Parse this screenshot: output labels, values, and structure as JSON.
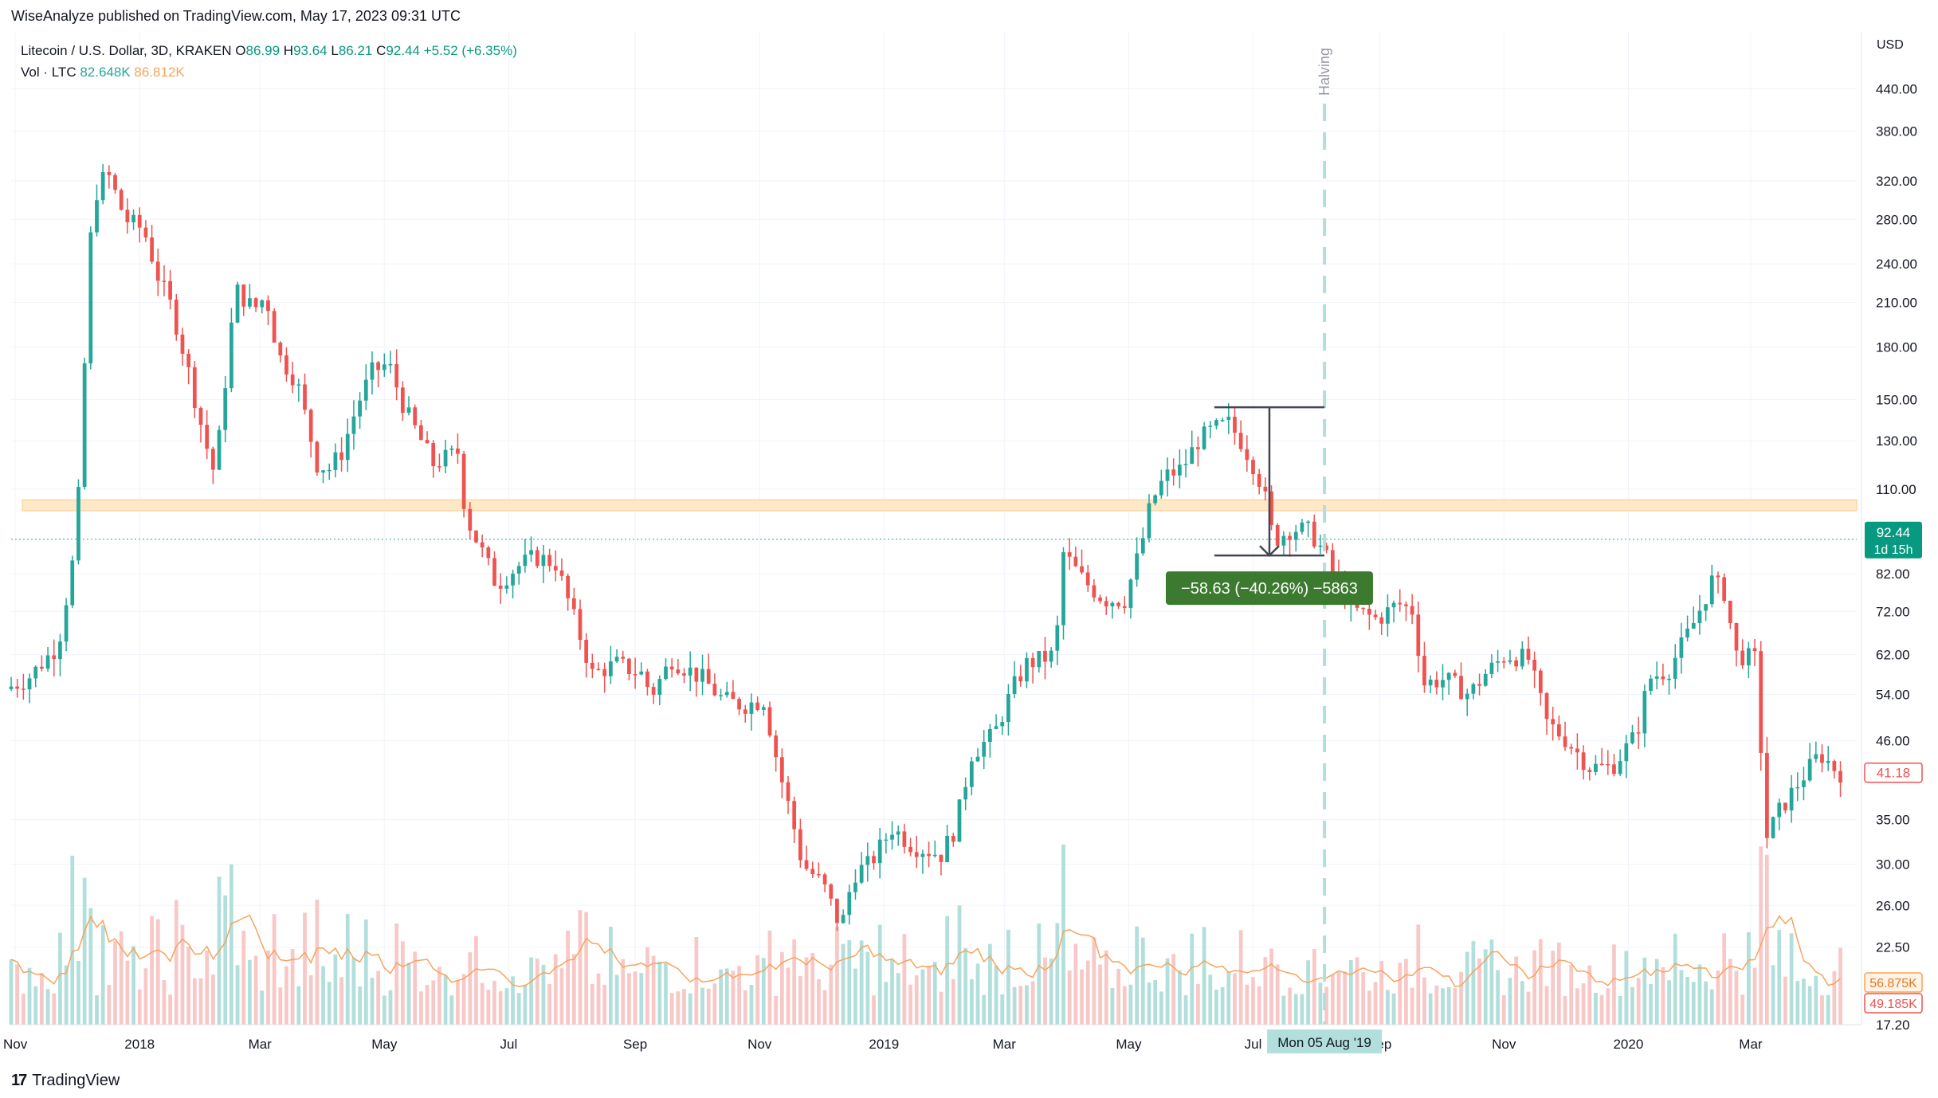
{
  "header": {
    "published": "WiseAnalyze published on TradingView.com, May 17, 2023 09:31 UTC",
    "symbol": "Litecoin / U.S. Dollar, 3D, KRAKEN",
    "ohlc": {
      "o_label": "O",
      "o": "86.99",
      "h_label": "H",
      "h": "93.64",
      "l_label": "L",
      "l": "86.21",
      "c_label": "C",
      "c": "92.44",
      "change": "+5.52 (+6.35%)"
    },
    "volume": {
      "label": "Vol · LTC",
      "value": "82.648K",
      "ma": "86.812K"
    }
  },
  "footer": {
    "brand": "TradingView"
  },
  "chart_data": {
    "type": "candlestick",
    "currency": "USD",
    "y_scale": "log",
    "ylim": [
      17.2,
      480
    ],
    "price_ticks": [
      "440.00",
      "380.00",
      "320.00",
      "280.00",
      "240.00",
      "210.00",
      "180.00",
      "150.00",
      "130.00",
      "110.00",
      "82.00",
      "72.00",
      "62.00",
      "54.00",
      "46.00",
      "35.00",
      "30.00",
      "26.00",
      "22.50",
      "17.20"
    ],
    "x_ticks": [
      "Nov",
      "2018",
      "Mar",
      "May",
      "Jul",
      "Sep",
      "Nov",
      "2019",
      "Mar",
      "May",
      "Jul",
      "Sep",
      "Nov",
      "2020",
      "Mar"
    ],
    "x_tick_dates": [
      "2017-11-01",
      "2018-01-01",
      "2018-03-01",
      "2018-05-01",
      "2018-07-01",
      "2018-09-01",
      "2018-11-01",
      "2019-01-01",
      "2019-03-01",
      "2019-05-01",
      "2019-07-01",
      "2019-09-01",
      "2019-11-01",
      "2020-01-01",
      "2020-03-01"
    ],
    "x_range": [
      "2017-10-30",
      "2020-04-22"
    ],
    "price_anchors": [
      [
        "2017-10-30",
        55
      ],
      [
        "2017-11-10",
        57
      ],
      [
        "2017-11-25",
        64
      ],
      [
        "2017-12-04",
        92
      ],
      [
        "2017-12-10",
        230
      ],
      [
        "2017-12-12",
        300
      ],
      [
        "2017-12-19",
        330
      ],
      [
        "2017-12-28",
        280
      ],
      [
        "2018-01-06",
        270
      ],
      [
        "2018-01-13",
        230
      ],
      [
        "2018-01-20",
        205
      ],
      [
        "2018-01-27",
        170
      ],
      [
        "2018-02-05",
        130
      ],
      [
        "2018-02-10",
        115
      ],
      [
        "2018-02-14",
        150
      ],
      [
        "2018-02-20",
        220
      ],
      [
        "2018-03-01",
        205
      ],
      [
        "2018-03-07",
        215
      ],
      [
        "2018-03-13",
        175
      ],
      [
        "2018-03-22",
        160
      ],
      [
        "2018-04-01",
        120
      ],
      [
        "2018-04-07",
        118
      ],
      [
        "2018-04-13",
        125
      ],
      [
        "2018-04-21",
        148
      ],
      [
        "2018-04-28",
        165
      ],
      [
        "2018-05-06",
        170
      ],
      [
        "2018-05-14",
        145
      ],
      [
        "2018-05-28",
        120
      ],
      [
        "2018-06-09",
        125
      ],
      [
        "2018-06-13",
        100
      ],
      [
        "2018-06-22",
        87
      ],
      [
        "2018-06-28",
        79
      ],
      [
        "2018-07-08",
        84
      ],
      [
        "2018-07-17",
        87
      ],
      [
        "2018-07-27",
        85
      ],
      [
        "2018-08-08",
        66
      ],
      [
        "2018-08-14",
        58
      ],
      [
        "2018-08-26",
        60
      ],
      [
        "2018-09-07",
        58
      ],
      [
        "2018-09-12",
        54
      ],
      [
        "2018-09-22",
        61
      ],
      [
        "2018-10-07",
        57
      ],
      [
        "2018-10-17",
        53
      ],
      [
        "2018-10-27",
        52
      ],
      [
        "2018-11-06",
        53
      ],
      [
        "2018-11-14",
        41
      ],
      [
        "2018-11-20",
        35
      ],
      [
        "2018-11-25",
        30
      ],
      [
        "2018-12-05",
        28
      ],
      [
        "2018-12-14",
        24
      ],
      [
        "2018-12-20",
        29
      ],
      [
        "2018-12-28",
        30
      ],
      [
        "2019-01-08",
        34
      ],
      [
        "2019-01-18",
        32
      ],
      [
        "2019-02-01",
        31
      ],
      [
        "2019-02-08",
        34
      ],
      [
        "2019-02-16",
        44
      ],
      [
        "2019-02-27",
        47
      ],
      [
        "2019-03-08",
        55
      ],
      [
        "2019-03-15",
        60
      ],
      [
        "2019-03-29",
        62
      ],
      [
        "2019-04-02",
        88
      ],
      [
        "2019-04-12",
        80
      ],
      [
        "2019-04-22",
        75
      ],
      [
        "2019-05-02",
        75
      ],
      [
        "2019-05-10",
        90
      ],
      [
        "2019-05-15",
        105
      ],
      [
        "2019-05-22",
        115
      ],
      [
        "2019-05-30",
        118
      ],
      [
        "2019-06-07",
        130
      ],
      [
        "2019-06-14",
        135
      ],
      [
        "2019-06-22",
        138
      ],
      [
        "2019-06-28",
        130
      ],
      [
        "2019-07-04",
        120
      ],
      [
        "2019-07-09",
        110
      ],
      [
        "2019-07-14",
        92
      ],
      [
        "2019-07-23",
        96
      ],
      [
        "2019-08-01",
        95
      ],
      [
        "2019-08-08",
        88
      ],
      [
        "2019-08-15",
        78
      ],
      [
        "2019-08-24",
        72
      ],
      [
        "2019-09-03",
        70
      ],
      [
        "2019-09-13",
        74
      ],
      [
        "2019-09-21",
        72
      ],
      [
        "2019-09-25",
        56
      ],
      [
        "2019-10-06",
        57
      ],
      [
        "2019-10-18",
        54
      ],
      [
        "2019-10-26",
        58
      ],
      [
        "2019-11-05",
        62
      ],
      [
        "2019-11-16",
        61
      ],
      [
        "2019-11-25",
        49
      ],
      [
        "2019-12-05",
        46
      ],
      [
        "2019-12-16",
        42
      ],
      [
        "2019-12-27",
        42
      ],
      [
        "2020-01-08",
        47
      ],
      [
        "2020-01-14",
        57
      ],
      [
        "2020-01-24",
        59
      ],
      [
        "2020-02-06",
        70
      ],
      [
        "2020-02-14",
        80
      ],
      [
        "2020-02-20",
        77
      ],
      [
        "2020-02-26",
        62
      ],
      [
        "2020-03-06",
        61
      ],
      [
        "2020-03-12",
        33
      ],
      [
        "2020-03-18",
        36
      ],
      [
        "2020-03-28",
        40
      ],
      [
        "2020-04-07",
        44
      ],
      [
        "2020-04-16",
        41.2
      ]
    ],
    "annotations": {
      "resistance_zone": [
        102,
        106
      ],
      "dotted_last_price": 92.44,
      "halving": {
        "date": "2019-08-05",
        "label": "Halving"
      },
      "measure": {
        "from_date": "2019-06-12",
        "to_date": "2019-08-05",
        "top": 146,
        "bottom": 87.4,
        "label": "−58.63 (−40.26%) −5863"
      },
      "crosshair_date_label": "Mon 05 Aug '19"
    },
    "price_labels": {
      "last": "92.44",
      "countdown": "1d 15h",
      "prev": "41.18"
    },
    "volume_labels": {
      "vol": "56.875K",
      "ma": "49.185K"
    },
    "colors": {
      "up": "#26a69a",
      "down": "#ef5350",
      "vol_up": "#b2dfdb",
      "vol_down": "#f8c8c7",
      "vol_ma": "#f7a35c",
      "zone": "#fde9c8",
      "zone_border": "#f9cb8c",
      "measure_fill": "#3c7a2f",
      "grid": "#f0f3fa"
    }
  }
}
